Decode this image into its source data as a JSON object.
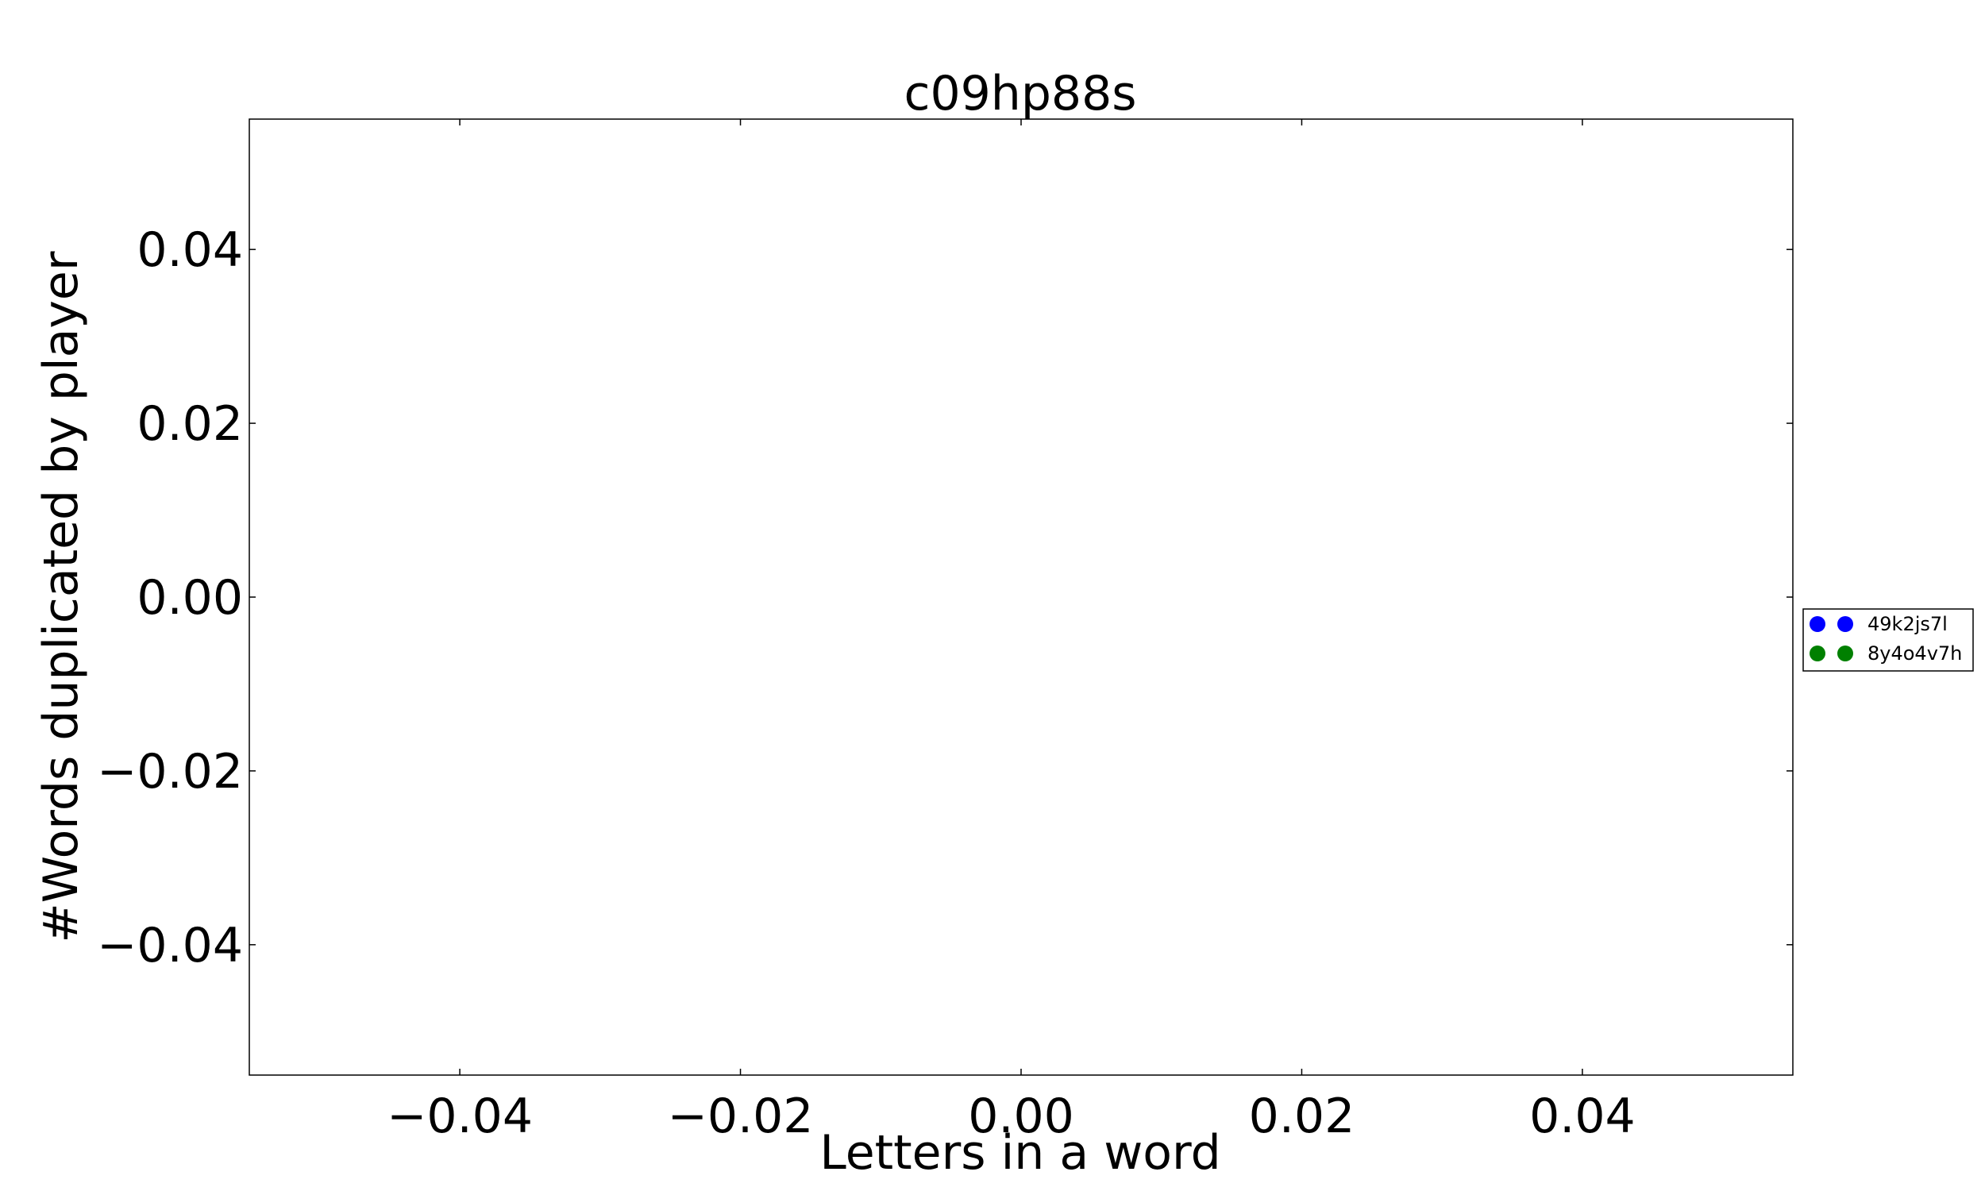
{
  "chart_data": {
    "type": "scatter",
    "title": "c09hp88s",
    "xlabel": "Letters in a word",
    "ylabel": "#Words duplicated by player",
    "xlim": [
      -0.055,
      0.055
    ],
    "ylim": [
      -0.055,
      0.055
    ],
    "x_ticks": [
      -0.04,
      -0.02,
      0.0,
      0.02,
      0.04
    ],
    "y_ticks": [
      -0.04,
      -0.02,
      0.0,
      0.02,
      0.04
    ],
    "x_tick_labels": [
      "−0.04",
      "−0.02",
      "0.00",
      "0.02",
      "0.04"
    ],
    "y_tick_labels": [
      "−0.04",
      "−0.02",
      "0.00",
      "0.02",
      "0.04"
    ],
    "grid": false,
    "legend_position": "right",
    "series": [
      {
        "name": "49k2js7l",
        "color": "#0000ff",
        "marker": "circle",
        "x": [],
        "y": []
      },
      {
        "name": "8y4o4v7h",
        "color": "#008000",
        "marker": "circle",
        "x": [],
        "y": []
      }
    ]
  }
}
